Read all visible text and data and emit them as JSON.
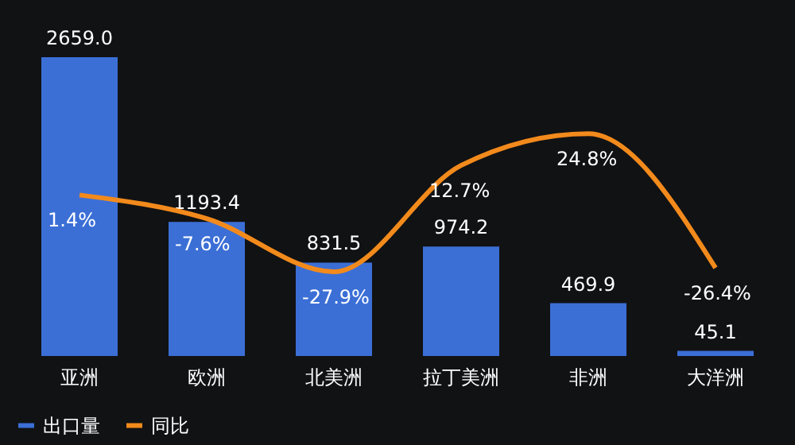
{
  "chart_data": {
    "type": "bar",
    "categories": [
      "亚洲",
      "欧洲",
      "北美洲",
      "拉丁美洲",
      "非洲",
      "大洋洲"
    ],
    "series": [
      {
        "name": "出口量",
        "color": "#3b6fd6",
        "values": [
          2659.0,
          1193.4,
          831.5,
          974.2,
          469.9,
          45.1
        ],
        "value_labels": [
          "2659.0",
          "1193.4",
          "831.5",
          "974.2",
          "469.9",
          "45.1"
        ]
      },
      {
        "name": "同比",
        "type": "line",
        "axis": "y2",
        "color": "#f28a1c",
        "values": [
          1.4,
          -7.6,
          -27.9,
          12.7,
          24.8,
          -26.4
        ],
        "value_labels": [
          "1.4%",
          "-7.6%",
          "-27.9%",
          "12.7%",
          "24.8%",
          "-26.4%"
        ]
      }
    ],
    "tick_labels": "x",
    "legend": "bottom",
    "grid": false,
    "marker": "none",
    "line_style": "solid"
  }
}
